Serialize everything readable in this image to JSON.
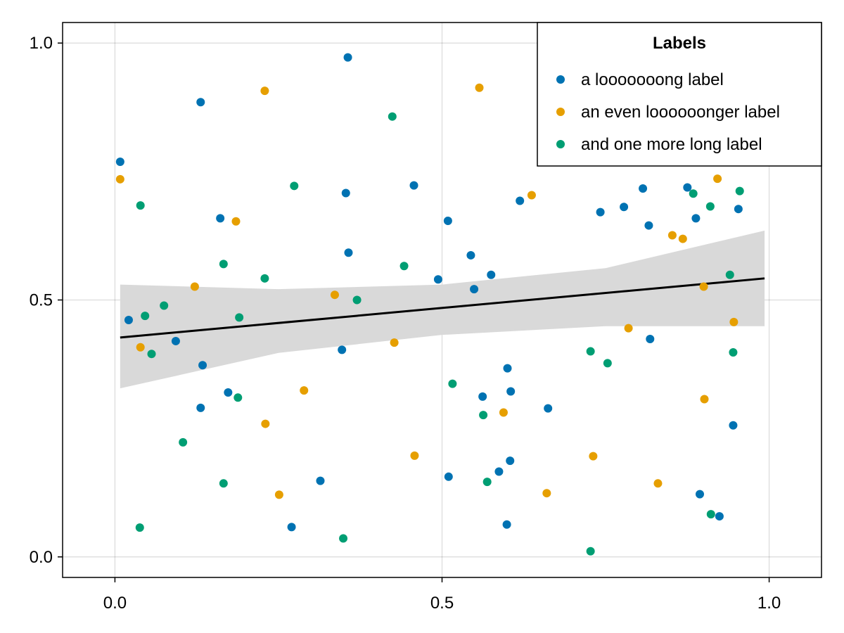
{
  "chart_data": {
    "type": "scatter",
    "title": "",
    "xlabel": "",
    "ylabel": "",
    "xlim": [
      -0.08,
      1.08
    ],
    "ylim": [
      -0.04,
      1.04
    ],
    "xticks": [
      0.0,
      0.5,
      1.0
    ],
    "xtick_labels": [
      "0.0",
      "0.5",
      "1.0"
    ],
    "yticks": [
      0.0,
      0.5,
      1.0
    ],
    "ytick_labels": [
      "0.0",
      "0.5",
      "1.0"
    ],
    "grid": true,
    "legend": {
      "title": "Labels",
      "position": "top-right"
    },
    "series": [
      {
        "name": "a looooooong label",
        "color": "#0072B2",
        "points": [
          [
            0.008,
            0.769
          ],
          [
            0.021,
            0.461
          ],
          [
            0.093,
            0.42
          ],
          [
            0.131,
            0.885
          ],
          [
            0.134,
            0.373
          ],
          [
            0.131,
            0.29
          ],
          [
            0.161,
            0.659
          ],
          [
            0.173,
            0.32
          ],
          [
            0.27,
            0.058
          ],
          [
            0.314,
            0.148
          ],
          [
            0.347,
            0.403
          ],
          [
            0.353,
            0.708
          ],
          [
            0.356,
            0.972
          ],
          [
            0.357,
            0.592
          ],
          [
            0.457,
            0.723
          ],
          [
            0.494,
            0.54
          ],
          [
            0.509,
            0.654
          ],
          [
            0.51,
            0.156
          ],
          [
            0.544,
            0.587
          ],
          [
            0.549,
            0.521
          ],
          [
            0.562,
            0.312
          ],
          [
            0.575,
            0.549
          ],
          [
            0.587,
            0.166
          ],
          [
            0.599,
            0.063
          ],
          [
            0.6,
            0.367
          ],
          [
            0.604,
            0.187
          ],
          [
            0.605,
            0.322
          ],
          [
            0.619,
            0.693
          ],
          [
            0.662,
            0.289
          ],
          [
            0.742,
            0.671
          ],
          [
            0.778,
            0.681
          ],
          [
            0.807,
            0.717
          ],
          [
            0.816,
            0.645
          ],
          [
            0.818,
            0.424
          ],
          [
            0.875,
            0.719
          ],
          [
            0.888,
            0.659
          ],
          [
            0.894,
            0.122
          ],
          [
            0.924,
            0.079
          ],
          [
            0.945,
            0.256
          ],
          [
            0.953,
            0.677
          ]
        ]
      },
      {
        "name": "an even loooooonger label",
        "color": "#E69F00",
        "points": [
          [
            0.008,
            0.735
          ],
          [
            0.039,
            0.408
          ],
          [
            0.122,
            0.526
          ],
          [
            0.185,
            0.653
          ],
          [
            0.229,
            0.907
          ],
          [
            0.23,
            0.259
          ],
          [
            0.251,
            0.121
          ],
          [
            0.289,
            0.324
          ],
          [
            0.336,
            0.51
          ],
          [
            0.427,
            0.417
          ],
          [
            0.458,
            0.197
          ],
          [
            0.557,
            0.913
          ],
          [
            0.594,
            0.281
          ],
          [
            0.637,
            0.704
          ],
          [
            0.66,
            0.124
          ],
          [
            0.731,
            0.196
          ],
          [
            0.785,
            0.445
          ],
          [
            0.83,
            0.143
          ],
          [
            0.852,
            0.626
          ],
          [
            0.868,
            0.619
          ],
          [
            0.9,
            0.526
          ],
          [
            0.901,
            0.307
          ],
          [
            0.921,
            0.736
          ],
          [
            0.946,
            0.457
          ]
        ]
      },
      {
        "name": "and one more long label",
        "color": "#009E73",
        "points": [
          [
            0.039,
            0.684
          ],
          [
            0.038,
            0.057
          ],
          [
            0.046,
            0.469
          ],
          [
            0.056,
            0.395
          ],
          [
            0.075,
            0.489
          ],
          [
            0.104,
            0.223
          ],
          [
            0.166,
            0.143
          ],
          [
            0.166,
            0.57
          ],
          [
            0.188,
            0.31
          ],
          [
            0.19,
            0.466
          ],
          [
            0.229,
            0.542
          ],
          [
            0.274,
            0.722
          ],
          [
            0.349,
            0.036
          ],
          [
            0.37,
            0.5
          ],
          [
            0.424,
            0.857
          ],
          [
            0.442,
            0.566
          ],
          [
            0.516,
            0.337
          ],
          [
            0.563,
            0.276
          ],
          [
            0.569,
            0.146
          ],
          [
            0.727,
            0.011
          ],
          [
            0.727,
            0.4
          ],
          [
            0.753,
            0.377
          ],
          [
            0.884,
            0.707
          ],
          [
            0.91,
            0.682
          ],
          [
            0.911,
            0.083
          ],
          [
            0.94,
            0.549
          ],
          [
            0.945,
            0.398
          ],
          [
            0.955,
            0.712
          ]
        ]
      }
    ],
    "regression": {
      "color": "#000000",
      "band_color": "#d9d9d9",
      "line": [
        [
          0.008,
          0.427
        ],
        [
          0.993,
          0.542
        ]
      ],
      "band_upper": [
        [
          0.008,
          0.53
        ],
        [
          0.25,
          0.521
        ],
        [
          0.5,
          0.53
        ],
        [
          0.75,
          0.562
        ],
        [
          0.993,
          0.635
        ]
      ],
      "band_lower": [
        [
          0.008,
          0.328
        ],
        [
          0.25,
          0.397
        ],
        [
          0.5,
          0.432
        ],
        [
          0.75,
          0.449
        ],
        [
          0.993,
          0.449
        ]
      ]
    }
  }
}
